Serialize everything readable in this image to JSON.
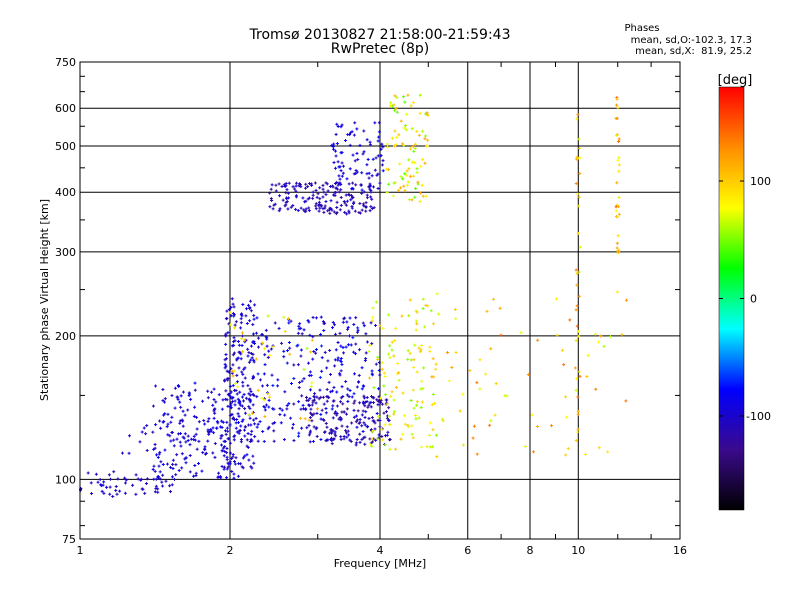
{
  "chart_data": {
    "type": "scatter",
    "title": "Tromsø 20130827 21:58:00-21:59:43",
    "subtitle": "RwPretec (8p)",
    "stats": {
      "heading": "Phases",
      "line1": "mean, sd,O:-102.3, 17.3",
      "line2": "mean, sd,X:  81.9, 25.2"
    },
    "xlabel": "Frequency [MHz]",
    "ylabel": "Stationary phase Virtual Height [km]",
    "x_scale": "log2",
    "y_scale": "log",
    "xlim": [
      1,
      16
    ],
    "ylim": [
      75,
      750
    ],
    "grid": true,
    "x_ticks": [
      {
        "v": 1,
        "label": "1"
      },
      {
        "v": 2,
        "label": "2"
      },
      {
        "v": 4,
        "label": "4"
      },
      {
        "v": 6,
        "label": "6"
      },
      {
        "v": 8,
        "label": "8"
      },
      {
        "v": 10,
        "label": "10"
      },
      {
        "v": 16,
        "label": "16"
      }
    ],
    "y_ticks": [
      {
        "v": 75,
        "label": "75"
      },
      {
        "v": 100,
        "label": "100"
      },
      {
        "v": 200,
        "label": "200"
      },
      {
        "v": 300,
        "label": "300"
      },
      {
        "v": 400,
        "label": "400"
      },
      {
        "v": 500,
        "label": "500"
      },
      {
        "v": 600,
        "label": "600"
      },
      {
        "v": 750,
        "label": "750"
      }
    ],
    "colorbar": {
      "label": "[deg]",
      "range": [
        -180,
        180
      ],
      "ticks": [
        {
          "v": 100,
          "label": "100"
        },
        {
          "v": 0,
          "label": "0"
        },
        {
          "v": -100,
          "label": "-100"
        }
      ],
      "stops": [
        "#ff0000",
        "#ff8c00",
        "#ffff00",
        "#00ff00",
        "#00ffff",
        "#0000ff",
        "#3a0a8c",
        "#000000"
      ]
    },
    "clusters": [
      {
        "name": "low E trace",
        "x": [
          1.0,
          1.55
        ],
        "y": [
          92,
          104
        ],
        "phase": [
          -110,
          -95
        ],
        "count": 60
      },
      {
        "name": "E to F1 rise",
        "x": [
          1.4,
          2.1
        ],
        "y": [
          100,
          160
        ],
        "phase": [
          -110,
          -80
        ],
        "count": 180
      },
      {
        "name": "F1 column",
        "x": [
          1.95,
          2.25
        ],
        "y": [
          105,
          240
        ],
        "phase": [
          -115,
          -85
        ],
        "count": 200
      },
      {
        "name": "F1 region",
        "x": [
          2.2,
          4.0
        ],
        "y": [
          120,
          220
        ],
        "phase": [
          -115,
          -70
        ],
        "count": 280
      },
      {
        "name": "F1 lower band",
        "x": [
          2.8,
          4.2
        ],
        "y": [
          118,
          150
        ],
        "phase": [
          -130,
          -100
        ],
        "count": 160
      },
      {
        "name": "F2 band",
        "x": [
          2.4,
          3.9
        ],
        "y": [
          360,
          420
        ],
        "phase": [
          -125,
          -95
        ],
        "count": 180
      },
      {
        "name": "F2 rise",
        "x": [
          3.2,
          4.1
        ],
        "y": [
          400,
          560
        ],
        "phase": [
          -110,
          -80
        ],
        "count": 90
      },
      {
        "name": "F2 X-mode",
        "x": [
          4.1,
          5.0
        ],
        "y": [
          380,
          640
        ],
        "phase": [
          40,
          120
        ],
        "count": 90
      },
      {
        "name": "F1 X-mode",
        "x": [
          3.8,
          5.2
        ],
        "y": [
          115,
          240
        ],
        "phase": [
          50,
          110
        ],
        "count": 120
      },
      {
        "name": "scattered high",
        "x": [
          5.0,
          12.5
        ],
        "y": [
          110,
          250
        ],
        "phase": [
          60,
          140
        ],
        "count": 70
      },
      {
        "name": "spread F column",
        "x": [
          9.9,
          10.1
        ],
        "y": [
          120,
          640
        ],
        "phase": [
          60,
          150
        ],
        "count": 35
      },
      {
        "name": "spread F column 2",
        "x": [
          11.9,
          12.1
        ],
        "y": [
          280,
          640
        ],
        "phase": [
          70,
          150
        ],
        "count": 30
      },
      {
        "name": "early E blue",
        "x": [
          1.2,
          2.0
        ],
        "y": [
          112,
          135
        ],
        "phase": [
          -110,
          -90
        ],
        "count": 50
      },
      {
        "name": "mid X",
        "x": [
          2.0,
          3.0
        ],
        "y": [
          130,
          230
        ],
        "phase": [
          60,
          120
        ],
        "count": 40
      }
    ]
  }
}
